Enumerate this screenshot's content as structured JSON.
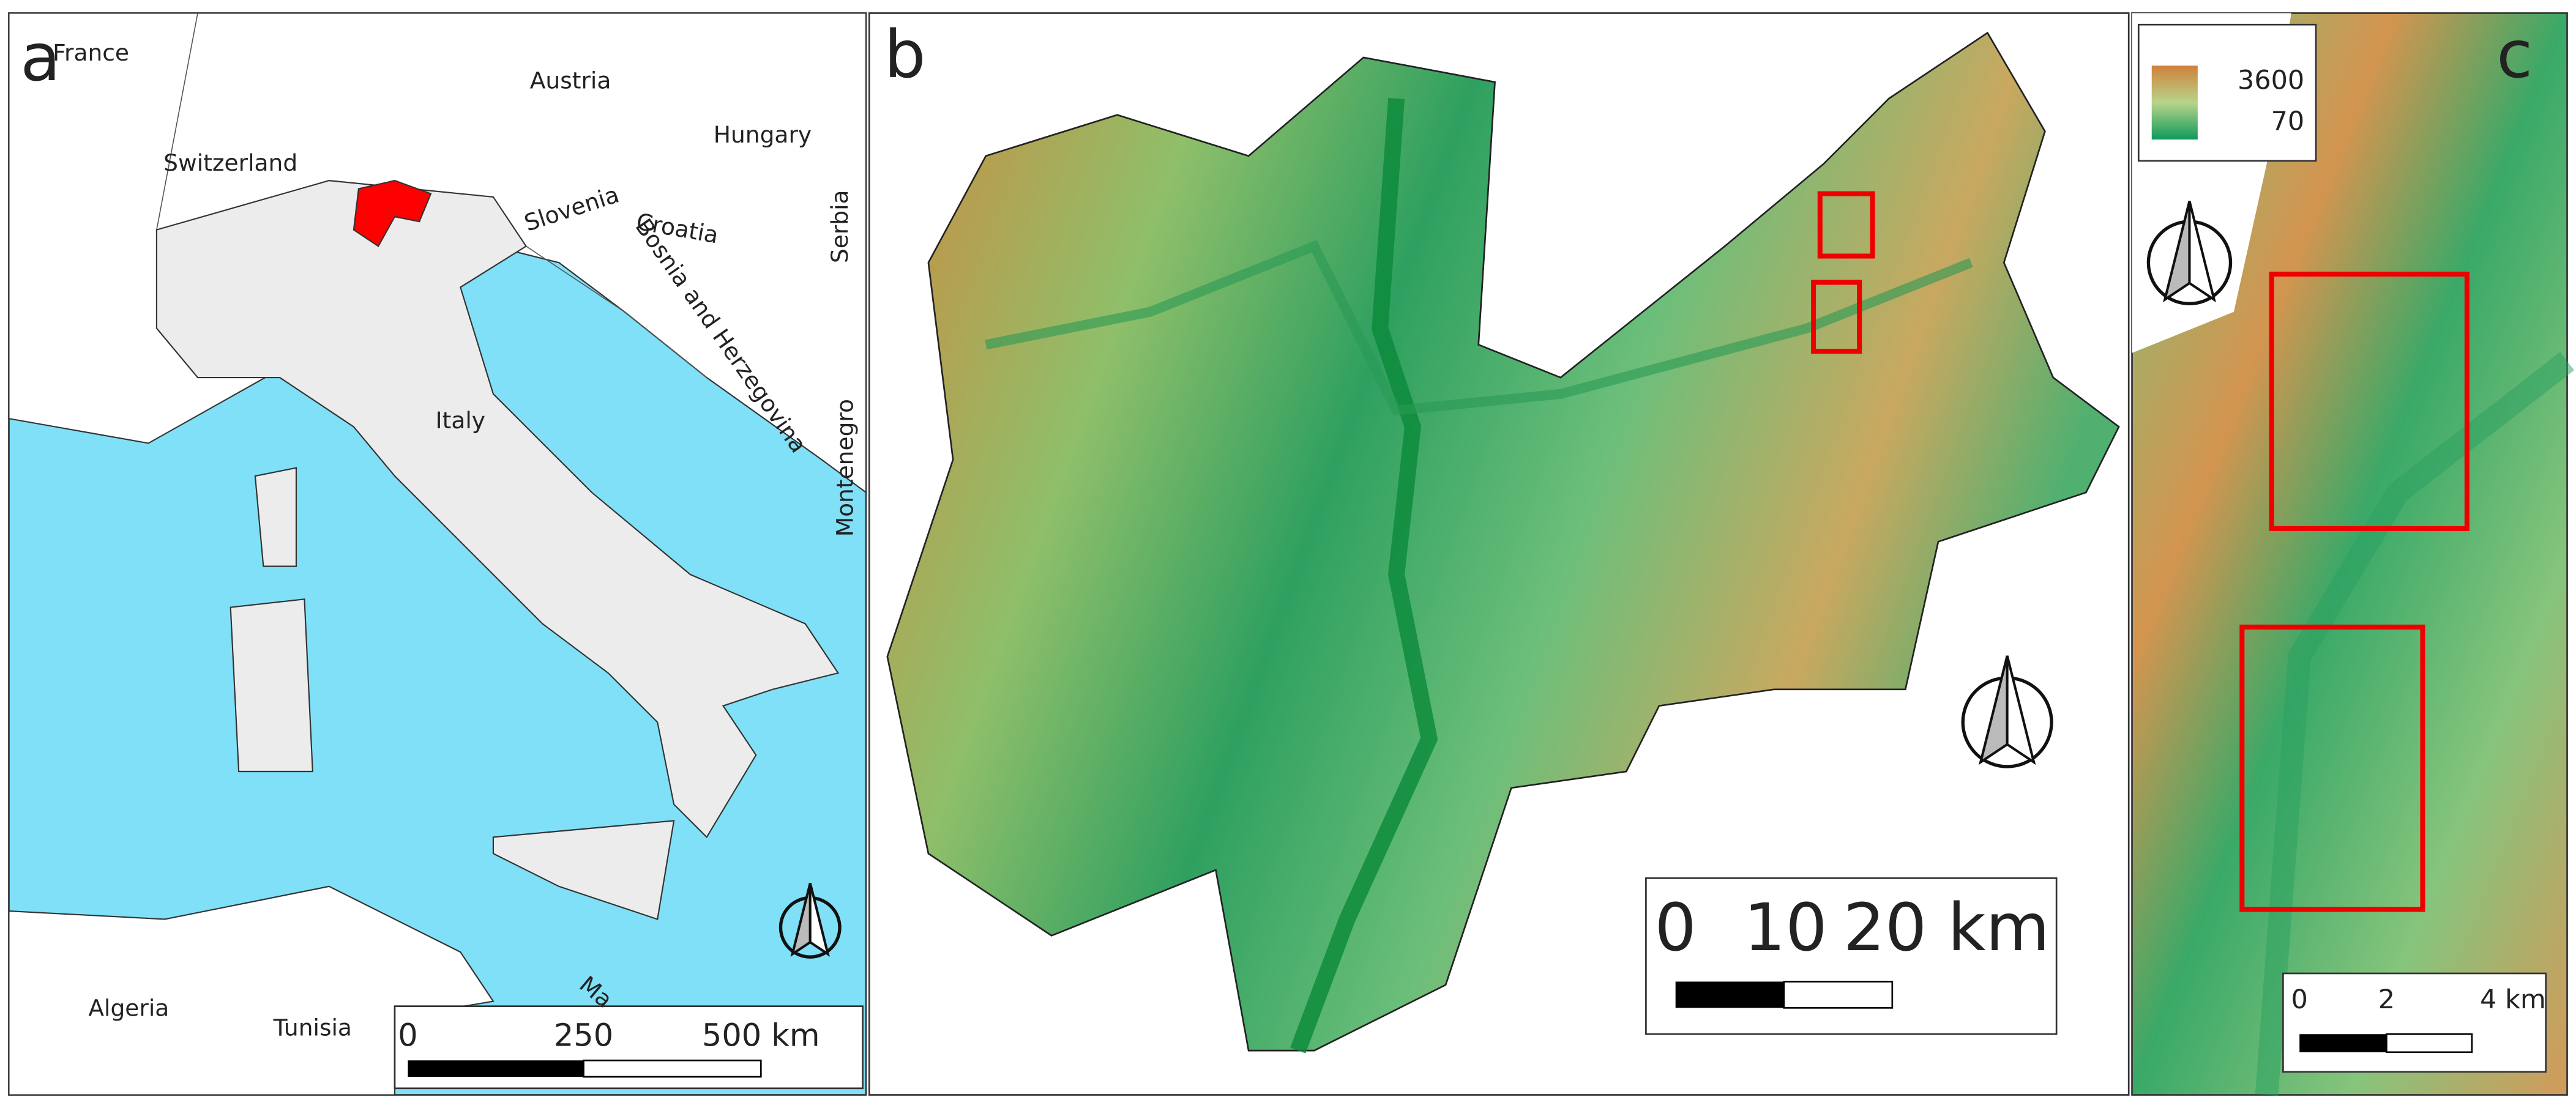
{
  "panels": [
    {
      "label": "a",
      "countries": [
        "France",
        "Austria",
        "Switzerland",
        "Hungary",
        "Slovenia",
        "Croatia",
        "Serbia",
        "Bosnia and Herzegovina",
        "Italy",
        "Montenegro",
        "Algeria",
        "Tunisia",
        "Ma"
      ],
      "scale_bar": [
        "0",
        "250",
        "500 km"
      ]
    },
    {
      "label": "b",
      "scale_bar": [
        "0",
        "10",
        "20 km"
      ]
    },
    {
      "label": "c",
      "legend": [
        "3600",
        "70"
      ],
      "scale_bar": [
        "0",
        "2",
        "4 km"
      ]
    }
  ]
}
